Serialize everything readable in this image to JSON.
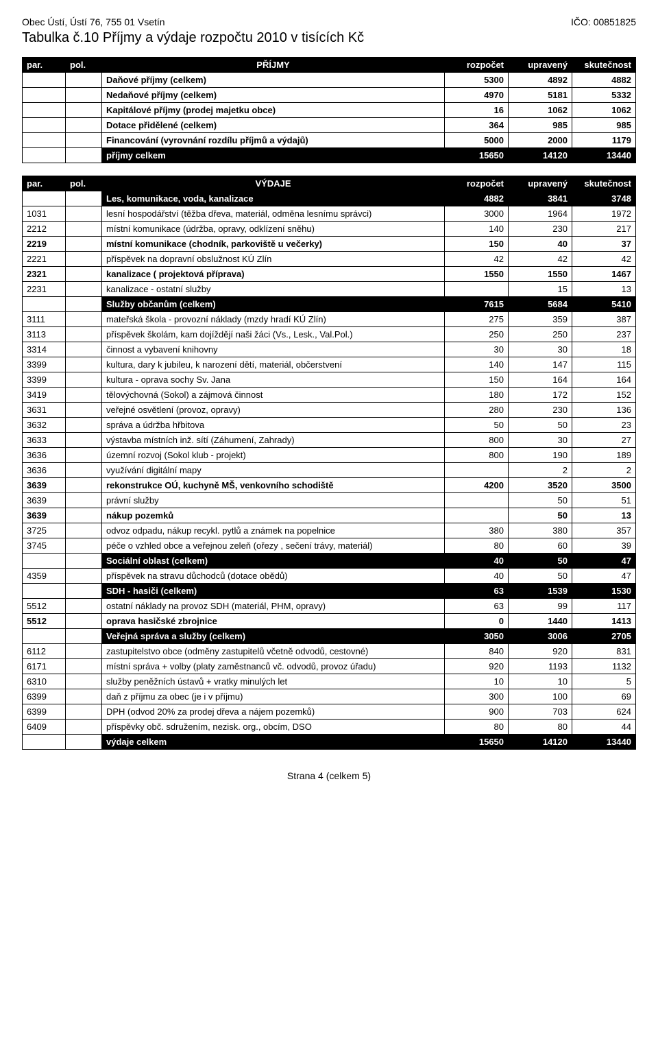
{
  "header": {
    "org_left": "Obec Ústí, Ústí 76, 755 01 Vsetín",
    "org_right": "IČO: 00851825",
    "title": "Tabulka č.10 Příjmy a výdaje rozpočtu 2010 v tisících Kč"
  },
  "income": {
    "columns": {
      "par": "par.",
      "pol": "pol.",
      "label": "PŘÍJMY",
      "budget": "rozpočet",
      "adjusted": "upravený",
      "actual": "skutečnost"
    },
    "rows": [
      {
        "par": "",
        "pol": "",
        "label": "Daňové příjmy (celkem)",
        "budget": "5300",
        "adjusted": "4892",
        "actual": "4882",
        "bold": true
      },
      {
        "par": "",
        "pol": "",
        "label": "Nedaňové příjmy (celkem)",
        "budget": "4970",
        "adjusted": "5181",
        "actual": "5332",
        "bold": true
      },
      {
        "par": "",
        "pol": "",
        "label": "Kapitálové příjmy (prodej majetku obce)",
        "budget": "16",
        "adjusted": "1062",
        "actual": "1062",
        "bold": true
      },
      {
        "par": "",
        "pol": "",
        "label": "Dotace přidělené (celkem)",
        "budget": "364",
        "adjusted": "985",
        "actual": "985",
        "bold": true
      },
      {
        "par": "",
        "pol": "",
        "label": "Financování (vyrovnání rozdílu příjmů a výdajů)",
        "budget": "5000",
        "adjusted": "2000",
        "actual": "1179",
        "bold": true
      },
      {
        "section": true,
        "par": "",
        "pol": "",
        "label": "příjmy celkem",
        "budget": "15650",
        "adjusted": "14120",
        "actual": "13440"
      }
    ]
  },
  "expense": {
    "columns": {
      "par": "par.",
      "pol": "pol.",
      "label": "VÝDAJE",
      "budget": "rozpočet",
      "adjusted": "upravený",
      "actual": "skutečnost"
    },
    "rows": [
      {
        "section": true,
        "par": "",
        "pol": "",
        "label": "Les, komunikace, voda, kanalizace",
        "budget": "4882",
        "adjusted": "3841",
        "actual": "3748"
      },
      {
        "par": "1031",
        "pol": "",
        "label": "lesní hospodářství (těžba dřeva, materiál, odměna lesnímu správci)",
        "budget": "3000",
        "adjusted": "1964",
        "actual": "1972"
      },
      {
        "par": "2212",
        "pol": "",
        "label": "místní komunikace (údržba, opravy, odklízení sněhu)",
        "budget": "140",
        "adjusted": "230",
        "actual": "217"
      },
      {
        "par": "2219",
        "pol": "",
        "label": "místní komunikace (chodník, parkoviště u večerky)",
        "budget": "150",
        "adjusted": "40",
        "actual": "37",
        "bold": true
      },
      {
        "par": "2221",
        "pol": "",
        "label": "příspěvek na dopravní obslužnost KÚ Zlín",
        "budget": "42",
        "adjusted": "42",
        "actual": "42"
      },
      {
        "par": "2321",
        "pol": "",
        "label": "kanalizace ( projektová příprava)",
        "budget": "1550",
        "adjusted": "1550",
        "actual": "1467",
        "bold": true
      },
      {
        "par": "2231",
        "pol": "",
        "label": "kanalizace - ostatní služby",
        "budget": "",
        "adjusted": "15",
        "actual": "13"
      },
      {
        "section": true,
        "par": "",
        "pol": "",
        "label": "Služby občanům (celkem)",
        "budget": "7615",
        "adjusted": "5684",
        "actual": "5410"
      },
      {
        "par": "3111",
        "pol": "",
        "label": "mateřská škola - provozní náklady (mzdy hradí KÚ Zlín)",
        "budget": "275",
        "adjusted": "359",
        "actual": "387"
      },
      {
        "par": "3113",
        "pol": "",
        "label": "příspěvek školám, kam dojíždějí naši žáci (Vs., Lesk., Val.Pol.)",
        "budget": "250",
        "adjusted": "250",
        "actual": "237"
      },
      {
        "par": "3314",
        "pol": "",
        "label": "činnost a vybavení knihovny",
        "budget": "30",
        "adjusted": "30",
        "actual": "18"
      },
      {
        "par": "3399",
        "pol": "",
        "label": "kultura, dary k jubileu, k narození dětí, materiál, občerstvení",
        "budget": "140",
        "adjusted": "147",
        "actual": "115"
      },
      {
        "par": "3399",
        "pol": "",
        "label": "kultura - oprava sochy Sv. Jana",
        "budget": "150",
        "adjusted": "164",
        "actual": "164"
      },
      {
        "par": "3419",
        "pol": "",
        "label": "tělovýchovná (Sokol) a zájmová činnost",
        "budget": "180",
        "adjusted": "172",
        "actual": "152"
      },
      {
        "par": "3631",
        "pol": "",
        "label": "veřejné osvětlení (provoz, opravy)",
        "budget": "280",
        "adjusted": "230",
        "actual": "136"
      },
      {
        "par": "3632",
        "pol": "",
        "label": "správa a údržba hřbitova",
        "budget": "50",
        "adjusted": "50",
        "actual": "23"
      },
      {
        "par": "3633",
        "pol": "",
        "label": "výstavba místních inž. sítí (Záhumení,  Zahrady)",
        "budget": "800",
        "adjusted": "30",
        "actual": "27"
      },
      {
        "par": "3636",
        "pol": "",
        "label": "územní rozvoj (Sokol klub - projekt)",
        "budget": "800",
        "adjusted": "190",
        "actual": "189"
      },
      {
        "par": "3636",
        "pol": "",
        "label": "využívání digitální mapy",
        "budget": "",
        "adjusted": "2",
        "actual": "2"
      },
      {
        "par": "3639",
        "pol": "",
        "label": "rekonstrukce OÚ, kuchyně MŠ, venkovního schodiště",
        "budget": "4200",
        "adjusted": "3520",
        "actual": "3500",
        "bold": true
      },
      {
        "par": "3639",
        "pol": "",
        "label": "právní služby",
        "budget": "",
        "adjusted": "50",
        "actual": "51"
      },
      {
        "par": "3639",
        "pol": "",
        "label": "nákup pozemků",
        "budget": "",
        "adjusted": "50",
        "actual": "13",
        "bold": true
      },
      {
        "par": "3725",
        "pol": "",
        "label": "odvoz odpadu, nákup recykl. pytlů a známek na popelnice",
        "budget": "380",
        "adjusted": "380",
        "actual": "357"
      },
      {
        "par": "3745",
        "pol": "",
        "label": "péče o vzhled obce a veřejnou zeleň (ořezy , sečení trávy, materiál)",
        "budget": "80",
        "adjusted": "60",
        "actual": "39"
      },
      {
        "section": true,
        "par": "",
        "pol": "",
        "label": "Sociální oblast (celkem)",
        "budget": "40",
        "adjusted": "50",
        "actual": "47"
      },
      {
        "par": "4359",
        "pol": "",
        "label": "příspěvek na stravu důchodců (dotace obědů)",
        "budget": "40",
        "adjusted": "50",
        "actual": "47"
      },
      {
        "section": true,
        "par": "",
        "pol": "",
        "label": "SDH - hasiči (celkem)",
        "budget": "63",
        "adjusted": "1539",
        "actual": "1530"
      },
      {
        "par": "5512",
        "pol": "",
        "label": "ostatní náklady na provoz SDH (materiál, PHM, opravy)",
        "budget": "63",
        "adjusted": "99",
        "actual": "117"
      },
      {
        "par": "5512",
        "pol": "",
        "label": "oprava hasičské zbrojnice",
        "budget": "0",
        "adjusted": "1440",
        "actual": "1413",
        "bold": true
      },
      {
        "section": true,
        "par": "",
        "pol": "",
        "label": "Veřejná správa a služby (celkem)",
        "budget": "3050",
        "adjusted": "3006",
        "actual": "2705"
      },
      {
        "par": "6112",
        "pol": "",
        "label": "zastupitelstvo obce (odměny zastupitelů včetně odvodů, cestovné)",
        "budget": "840",
        "adjusted": "920",
        "actual": "831"
      },
      {
        "par": "6171",
        "pol": "",
        "label": "místní správa + volby (platy zaměstnanců vč. odvodů, provoz úřadu)",
        "budget": "920",
        "adjusted": "1193",
        "actual": "1132"
      },
      {
        "par": "6310",
        "pol": "",
        "label": "služby peněžních ústavů + vratky minulých let",
        "budget": "10",
        "adjusted": "10",
        "actual": "5"
      },
      {
        "par": "6399",
        "pol": "",
        "label": "daň z příjmu za obec (je i v příjmu)",
        "budget": "300",
        "adjusted": "100",
        "actual": "69"
      },
      {
        "par": "6399",
        "pol": "",
        "label": "DPH (odvod 20% za prodej dřeva a nájem pozemků)",
        "budget": "900",
        "adjusted": "703",
        "actual": "624"
      },
      {
        "par": "6409",
        "pol": "",
        "label": "příspěvky obč. sdružením, nezisk. org., obcím, DSO",
        "budget": "80",
        "adjusted": "80",
        "actual": "44"
      },
      {
        "section": true,
        "par": "",
        "pol": "",
        "label": "výdaje celkem",
        "budget": "15650",
        "adjusted": "14120",
        "actual": "13440"
      }
    ]
  },
  "footer": {
    "text": "Strana 4 (celkem 5)"
  }
}
